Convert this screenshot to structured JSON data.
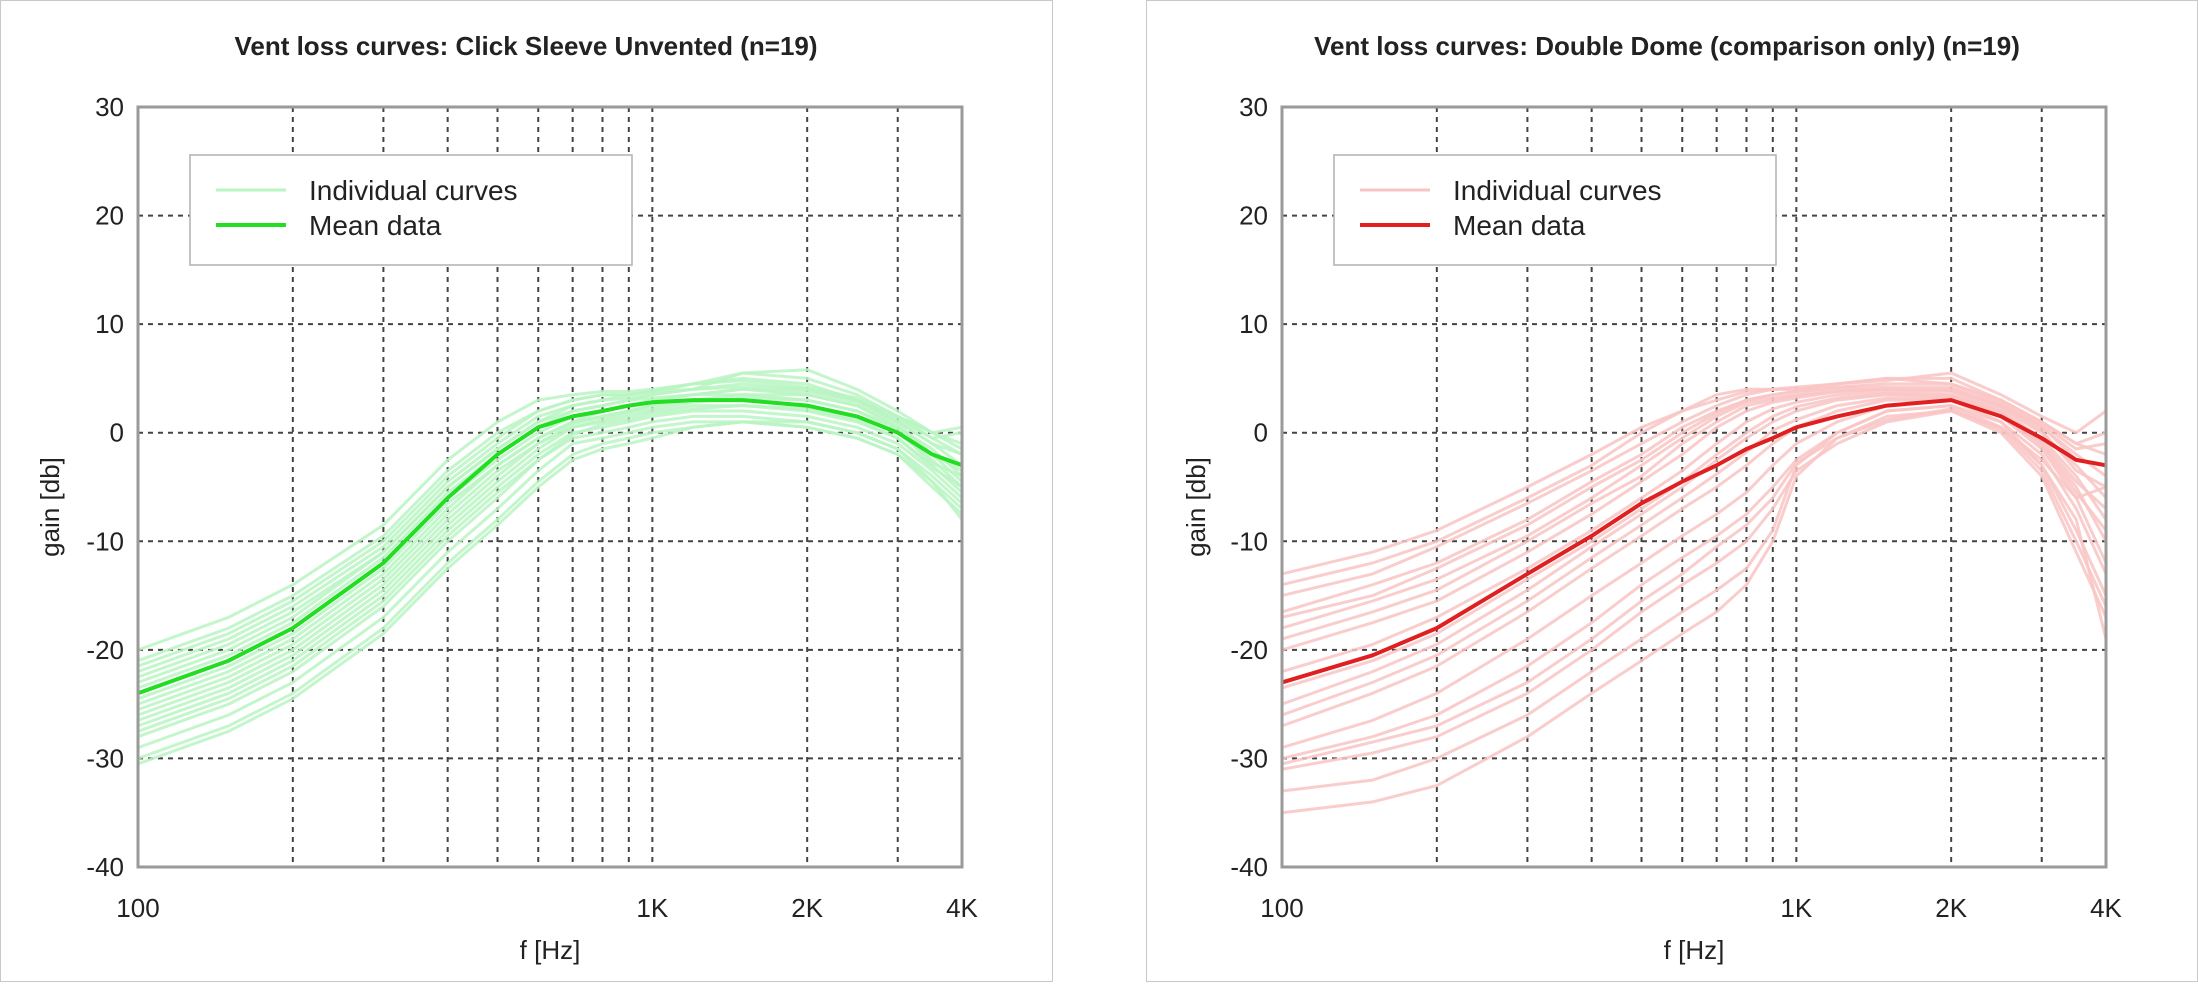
{
  "chart_data": [
    {
      "type": "line",
      "title": "Vent loss curves: Click Sleeve Unvented (n=19)",
      "xlabel": "f [Hz]",
      "ylabel": "gain [db]",
      "x_scale": "log",
      "xlim": [
        100,
        4000
      ],
      "ylim": [
        -40,
        30
      ],
      "x_ticks": [
        100,
        1000,
        2000,
        4000
      ],
      "x_tick_labels": [
        "100",
        "1K",
        "2K",
        "4K"
      ],
      "y_ticks": [
        30,
        20,
        10,
        0,
        -10,
        -20,
        -30,
        -40
      ],
      "y_tick_labels": [
        "30",
        "20",
        "10",
        "0",
        "-10",
        "-20",
        "-30",
        "-40"
      ],
      "grid": true,
      "legend_position": "top-left",
      "legend": [
        "Individual curves",
        "Mean data"
      ],
      "colors": {
        "individual": "#b8f5c2",
        "mean": "#22dd22"
      },
      "x": [
        100,
        150,
        200,
        300,
        400,
        500,
        600,
        700,
        800,
        900,
        1000,
        1200,
        1500,
        2000,
        2500,
        3000,
        3500,
        4000
      ],
      "series": [
        {
          "name": "Mean data",
          "role": "mean",
          "values": [
            -24,
            -21,
            -18,
            -12,
            -6,
            -2,
            0.5,
            1.5,
            2,
            2.5,
            2.8,
            3,
            3,
            2.5,
            1.5,
            0,
            -2,
            -3
          ]
        },
        {
          "role": "individual",
          "values": [
            -20,
            -17,
            -14,
            -8.5,
            -2.5,
            1,
            3,
            3.5,
            3.8,
            3.8,
            4,
            4.5,
            5,
            4.5,
            3,
            1.5,
            0,
            -1.5
          ]
        },
        {
          "role": "individual",
          "values": [
            -21,
            -18,
            -15,
            -9.5,
            -3.5,
            0,
            2,
            3,
            3.5,
            3.5,
            3.8,
            4.5,
            5.5,
            5,
            3.5,
            1.5,
            -0.5,
            -2
          ]
        },
        {
          "role": "individual",
          "values": [
            -22,
            -19,
            -16,
            -10.5,
            -4.5,
            -1,
            1.5,
            2.5,
            3,
            3.2,
            3.5,
            4,
            4.5,
            4,
            3,
            1,
            -1,
            -3
          ]
        },
        {
          "role": "individual",
          "values": [
            -23,
            -20,
            -17,
            -11,
            -5,
            -1.5,
            1,
            2,
            2.5,
            3,
            3.2,
            3.5,
            4,
            3.5,
            2.5,
            0.5,
            -1.5,
            -4
          ]
        },
        {
          "role": "individual",
          "values": [
            -24,
            -21,
            -18,
            -12,
            -6,
            -2.5,
            0,
            1.5,
            2,
            2.5,
            3,
            3.5,
            3.5,
            3,
            2,
            0.5,
            -2,
            -4.5
          ]
        },
        {
          "role": "individual",
          "values": [
            -25,
            -22,
            -19,
            -13,
            -7,
            -3,
            -0.5,
            1,
            1.5,
            2,
            2.5,
            3,
            3,
            2.5,
            1.5,
            0,
            -2.5,
            -5
          ]
        },
        {
          "role": "individual",
          "values": [
            -26,
            -23,
            -20,
            -14,
            -8,
            -4,
            -1,
            0.5,
            1,
            1.5,
            2,
            2.5,
            2.5,
            2,
            1,
            -0.5,
            -3,
            -5.5
          ]
        },
        {
          "role": "individual",
          "values": [
            -27,
            -24,
            -21,
            -15,
            -9,
            -5,
            -2,
            0,
            0.5,
            1,
            1.5,
            2,
            2,
            1.5,
            0.5,
            -1,
            -3.5,
            -6
          ]
        },
        {
          "role": "individual",
          "values": [
            -28,
            -25,
            -22,
            -16,
            -10,
            -6,
            -2.5,
            -0.5,
            0,
            0.5,
            1,
            1.5,
            1.5,
            1,
            0,
            -1.5,
            -4,
            -6.5
          ]
        },
        {
          "role": "individual",
          "values": [
            -29,
            -26,
            -23,
            -17,
            -11,
            -7,
            -3.5,
            -1,
            -0.5,
            0,
            0.5,
            1,
            1,
            0.5,
            -0.5,
            -2,
            -4.5,
            -7
          ]
        },
        {
          "role": "individual",
          "values": [
            -30,
            -27,
            -24,
            -18,
            -12,
            -8,
            -4.5,
            -2,
            -1,
            -0.5,
            0,
            0.5,
            1,
            0.5,
            -0.5,
            -2,
            -5,
            -7.5
          ]
        },
        {
          "role": "individual",
          "values": [
            -30.5,
            -27.5,
            -24.5,
            -18.5,
            -12.5,
            -8.5,
            -5,
            -2.5,
            -1.5,
            -1,
            -0.5,
            0.5,
            1,
            1,
            0,
            -1.5,
            -4.5,
            -8
          ]
        },
        {
          "role": "individual",
          "values": [
            -21.5,
            -18.5,
            -15.5,
            -10,
            -4,
            -0.5,
            2,
            3,
            3.5,
            3.5,
            3.8,
            4,
            5.5,
            5.8,
            4,
            2,
            0,
            -1
          ]
        },
        {
          "role": "individual",
          "values": [
            -22.5,
            -19.5,
            -16.5,
            -11,
            -5,
            -1.5,
            1,
            2.5,
            3,
            3.5,
            3.8,
            4.5,
            4.8,
            4.2,
            3.2,
            1.5,
            0,
            0.5
          ]
        },
        {
          "role": "individual",
          "values": [
            -23.5,
            -20.5,
            -17.5,
            -11.5,
            -5.5,
            -2,
            0.5,
            2,
            2.5,
            3,
            3.5,
            4,
            4.2,
            4,
            3,
            1.2,
            -0.5,
            0
          ]
        },
        {
          "role": "individual",
          "values": [
            -24.5,
            -21.5,
            -18.5,
            -12.5,
            -6.5,
            -3,
            -0.5,
            1,
            2,
            2.5,
            3,
            3.5,
            4,
            3.8,
            2.8,
            1,
            -1,
            -2
          ]
        },
        {
          "role": "individual",
          "values": [
            -25.5,
            -22.5,
            -19.5,
            -13.5,
            -7.5,
            -3.5,
            -1,
            0.8,
            1.5,
            2,
            2.5,
            3,
            3.5,
            3.5,
            2.5,
            0.8,
            -2,
            -3.5
          ]
        },
        {
          "role": "individual",
          "values": [
            -26.5,
            -23.5,
            -20.5,
            -14.5,
            -8.5,
            -4.5,
            -1.5,
            0.5,
            1.2,
            1.8,
            2.2,
            2.8,
            3.2,
            3,
            2,
            0.2,
            -2.8,
            -4
          ]
        },
        {
          "role": "individual",
          "values": [
            -27.5,
            -24.5,
            -21.5,
            -15.5,
            -9.5,
            -5.5,
            -2.5,
            -0.2,
            0.8,
            1.2,
            1.8,
            2.2,
            2.5,
            2.2,
            1.2,
            -0.5,
            -3.2,
            -5
          ]
        }
      ]
    },
    {
      "type": "line",
      "title": "Vent loss curves: Double Dome (comparison only) (n=19)",
      "xlabel": "f [Hz]",
      "ylabel": "gain [db]",
      "x_scale": "log",
      "xlim": [
        100,
        4000
      ],
      "ylim": [
        -40,
        30
      ],
      "x_ticks": [
        100,
        1000,
        2000,
        4000
      ],
      "x_tick_labels": [
        "100",
        "1K",
        "2K",
        "4K"
      ],
      "y_ticks": [
        30,
        20,
        10,
        0,
        -10,
        -20,
        -30,
        -40
      ],
      "y_tick_labels": [
        "30",
        "20",
        "10",
        "0",
        "-10",
        "-20",
        "-30",
        "-40"
      ],
      "grid": true,
      "legend_position": "top-left",
      "legend": [
        "Individual curves",
        "Mean data"
      ],
      "colors": {
        "individual": "#f9c4c4",
        "mean": "#e02020"
      },
      "x": [
        100,
        150,
        200,
        300,
        400,
        500,
        600,
        700,
        800,
        900,
        1000,
        1200,
        1500,
        2000,
        2500,
        3000,
        3500,
        4000
      ],
      "series": [
        {
          "name": "Mean data",
          "role": "mean",
          "values": [
            -23,
            -20.5,
            -18,
            -13,
            -9.5,
            -6.5,
            -4.5,
            -3,
            -1.5,
            -0.5,
            0.5,
            1.5,
            2.5,
            3,
            1.5,
            -0.5,
            -2.5,
            -3
          ]
        },
        {
          "role": "individual",
          "values": [
            -13,
            -11,
            -9,
            -5,
            -2,
            0.5,
            2,
            3,
            3.8,
            4,
            4,
            4.5,
            5,
            5,
            3,
            1,
            -1,
            0
          ]
        },
        {
          "role": "individual",
          "values": [
            -15,
            -13,
            -10.5,
            -6.5,
            -3.5,
            -1,
            1,
            2.5,
            3.5,
            4,
            4,
            4.5,
            4.8,
            5.5,
            3.5,
            1.5,
            0,
            2
          ]
        },
        {
          "role": "individual",
          "values": [
            -16.5,
            -14,
            -12,
            -8,
            -4.5,
            -2,
            0.5,
            2,
            3,
            3.5,
            3.8,
            4.2,
            4.5,
            4.5,
            3,
            1,
            -1,
            -2
          ]
        },
        {
          "role": "individual",
          "values": [
            -18,
            -15.5,
            -13.5,
            -9.5,
            -6,
            -3,
            -0.5,
            1.5,
            2.8,
            3.2,
            3.5,
            4,
            4,
            4,
            2.5,
            0.5,
            -2,
            -4
          ]
        },
        {
          "role": "individual",
          "values": [
            -20,
            -17.5,
            -15.5,
            -11,
            -7.5,
            -4.5,
            -2,
            0.5,
            2,
            2.8,
            3.2,
            3.8,
            4,
            3.8,
            2.2,
            0,
            -3,
            -6
          ]
        },
        {
          "role": "individual",
          "values": [
            -22,
            -19.5,
            -17,
            -12.5,
            -9,
            -6,
            -3.5,
            -1,
            1,
            2.2,
            2.8,
            3.5,
            3.8,
            3.5,
            2,
            -0.5,
            -4,
            -8
          ]
        },
        {
          "role": "individual",
          "values": [
            -25,
            -22,
            -19.5,
            -14.5,
            -10.5,
            -7.5,
            -5,
            -2.5,
            -0.5,
            1,
            2,
            3,
            3.5,
            3.2,
            1.8,
            -1,
            -5,
            -10
          ]
        },
        {
          "role": "individual",
          "values": [
            -27,
            -24,
            -21.5,
            -16.5,
            -12.5,
            -9.5,
            -7,
            -5,
            -3,
            -1,
            0.5,
            2,
            3,
            3,
            1.5,
            -1.5,
            -6,
            -12
          ]
        },
        {
          "role": "individual",
          "values": [
            -29,
            -26.5,
            -24,
            -19,
            -15,
            -12,
            -9.5,
            -7.5,
            -5.5,
            -3,
            -1,
            1,
            2.5,
            3,
            1,
            -2,
            -7,
            -13
          ]
        },
        {
          "role": "individual",
          "values": [
            -30,
            -28,
            -26,
            -21.5,
            -17.5,
            -14,
            -11.5,
            -9.5,
            -7.5,
            -5,
            -2.5,
            0,
            2,
            2.5,
            0.5,
            -3,
            -9,
            -15
          ]
        },
        {
          "role": "individual",
          "values": [
            -31,
            -29.5,
            -28,
            -24,
            -20,
            -16.5,
            -14,
            -12,
            -10,
            -7,
            -3.5,
            -1,
            1,
            2,
            0,
            -4,
            -11,
            -17
          ]
        },
        {
          "role": "individual",
          "values": [
            -33,
            -32,
            -30,
            -26,
            -22,
            -19,
            -16.5,
            -14.5,
            -12.5,
            -9,
            -3,
            0,
            2,
            2.5,
            1,
            -3,
            -8,
            -19
          ]
        },
        {
          "role": "individual",
          "values": [
            -35,
            -34,
            -32.5,
            -28,
            -24,
            -21,
            -18.5,
            -16.5,
            -14,
            -10,
            -4,
            -0.5,
            1.5,
            2,
            0.5,
            -2.5,
            -6,
            -5
          ]
        },
        {
          "role": "individual",
          "values": [
            -14,
            -12,
            -10,
            -6,
            -3,
            0,
            2,
            3.5,
            4,
            4,
            4.2,
            4.5,
            5,
            4.5,
            2.8,
            0.8,
            -1.5,
            -1
          ]
        },
        {
          "role": "individual",
          "values": [
            -17,
            -15,
            -12.5,
            -8.5,
            -5,
            -2.5,
            0,
            1.8,
            3,
            3.5,
            3.8,
            4.2,
            4.2,
            4.2,
            2.6,
            0.6,
            -2.5,
            -3
          ]
        },
        {
          "role": "individual",
          "values": [
            -19,
            -16.5,
            -14.5,
            -10,
            -6.5,
            -4,
            -1,
            1,
            2.5,
            3,
            3.4,
            3.8,
            4,
            3.9,
            2.4,
            0.2,
            -3.5,
            -5
          ]
        },
        {
          "role": "individual",
          "values": [
            -23.5,
            -21,
            -18.5,
            -13.5,
            -10,
            -7,
            -4.5,
            -2,
            0,
            1.5,
            2.4,
            3.2,
            3.6,
            3.4,
            1.9,
            -0.8,
            -4.5,
            -7
          ]
        },
        {
          "role": "individual",
          "values": [
            -26,
            -23,
            -20.5,
            -15.5,
            -11.5,
            -8.5,
            -6,
            -3.8,
            -1.8,
            0.2,
            1.2,
            2.5,
            3.2,
            3.1,
            1.6,
            -1.2,
            -5.5,
            -9
          ]
        },
        {
          "role": "individual",
          "values": [
            -30.5,
            -28.5,
            -27,
            -23,
            -19,
            -15.5,
            -13,
            -10.5,
            -8.5,
            -6,
            -2.8,
            -0.5,
            1.2,
            2.2,
            0.3,
            -3.5,
            -10,
            -16
          ]
        }
      ]
    }
  ]
}
